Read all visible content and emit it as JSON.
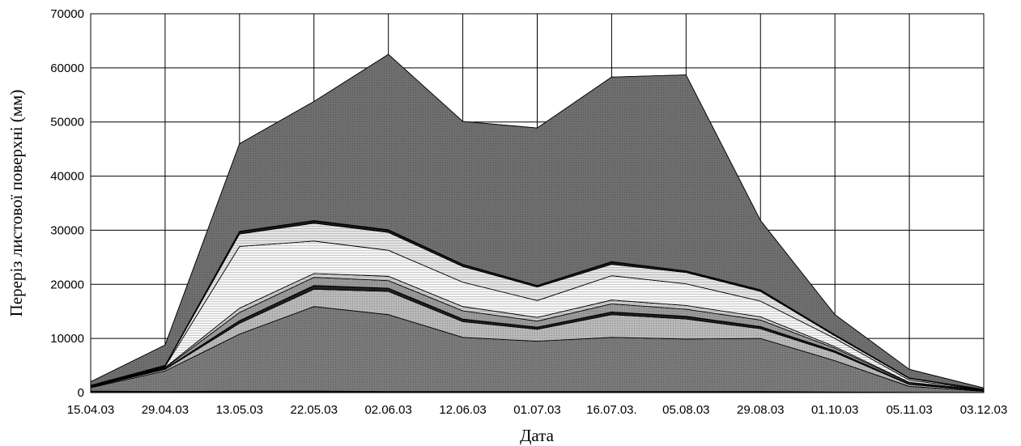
{
  "chart_data": {
    "type": "area",
    "stacked": true,
    "title": "",
    "xlabel": "Дата",
    "ylabel": "Переріз листової поверхні (мм)",
    "ylim": [
      0,
      70000
    ],
    "yticks": [
      "0",
      "10000",
      "20000",
      "30000",
      "40000",
      "50000",
      "60000",
      "70000"
    ],
    "grid": true,
    "legend": "none",
    "categories": [
      "15.04.03",
      "29.04.03",
      "13.05.03",
      "22.05.03",
      "02.06.03",
      "12.06.03",
      "01.07.03",
      "16.07.03.",
      "05.08.03",
      "29.08.03",
      "01.10.03",
      "05.11.03",
      "03.12.03"
    ],
    "series": [
      {
        "values": [
          300,
          200,
          300,
          300,
          200,
          200,
          200,
          200,
          200,
          200,
          100,
          50,
          20
        ],
        "fill": "#111111"
      },
      {
        "values": [
          600,
          3800,
          10500,
          15600,
          14200,
          10000,
          9300,
          10000,
          9700,
          9800,
          5800,
          1100,
          230
        ],
        "fill": "#7a7a7a"
      },
      {
        "values": [
          100,
          300,
          2000,
          3200,
          4300,
          2900,
          2200,
          4200,
          3700,
          1800,
          1500,
          350,
          100
        ],
        "fill": "#b8b8b8"
      },
      {
        "values": [
          50,
          100,
          500,
          700,
          600,
          500,
          400,
          500,
          500,
          400,
          300,
          100,
          50
        ],
        "fill": "#222222"
      },
      {
        "values": [
          50,
          150,
          1500,
          1500,
          1400,
          1500,
          1100,
          1500,
          1300,
          1200,
          500,
          200,
          50
        ],
        "fill": "#9a9a9a"
      },
      {
        "values": [
          50,
          100,
          800,
          700,
          800,
          800,
          700,
          700,
          700,
          600,
          300,
          100,
          30
        ],
        "fill": "#d0d0d0"
      },
      {
        "values": [
          50,
          150,
          11400,
          6000,
          4800,
          4500,
          3100,
          4500,
          4000,
          2900,
          1500,
          400,
          50
        ],
        "fill": "#f7f7f7"
      },
      {
        "values": [
          50,
          100,
          2300,
          3300,
          3300,
          2900,
          2500,
          2100,
          2100,
          1800,
          500,
          300,
          50
        ],
        "fill": "#e6e6e6"
      },
      {
        "values": [
          100,
          150,
          500,
          500,
          500,
          400,
          300,
          500,
          300,
          300,
          200,
          100,
          40
        ],
        "fill": "#1a1a1a"
      },
      {
        "values": [
          650,
          3750,
          16200,
          22000,
          32400,
          26400,
          29100,
          34100,
          36200,
          12800,
          3700,
          1600,
          230
        ],
        "fill": "#6f6f6f"
      }
    ]
  }
}
